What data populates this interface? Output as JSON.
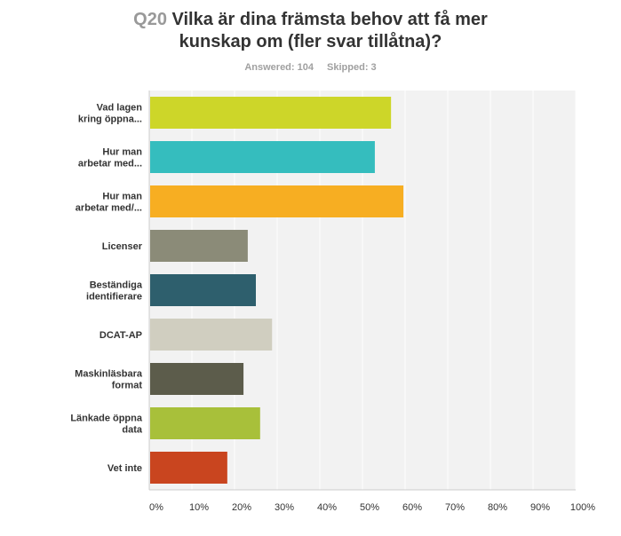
{
  "question": {
    "number": "Q20",
    "title_line1": "Vilka är dina främsta behov att få mer",
    "title_line2": "kunskap om (fler svar tillåtna)?"
  },
  "stats": {
    "answered": "Answered: 104",
    "skipped": "Skipped: 3"
  },
  "chart_data": {
    "type": "bar",
    "orientation": "horizontal",
    "categories": [
      [
        "Vad lagen",
        "kring öppna..."
      ],
      [
        "Hur man",
        "arbetar med..."
      ],
      [
        "Hur man",
        "arbetar med/..."
      ],
      [
        "Licenser"
      ],
      [
        "Beständiga",
        "identifierare"
      ],
      [
        "DCAT-AP"
      ],
      [
        "Maskinläsbara",
        "format"
      ],
      [
        "Länkade öppna",
        "data"
      ],
      [
        "Vet inte"
      ]
    ],
    "values": [
      56.7,
      52.9,
      59.6,
      23.1,
      25.0,
      28.8,
      22.1,
      26.0,
      18.3
    ],
    "colors": [
      "#cdd629",
      "#35bdbe",
      "#f7ae22",
      "#8b8b78",
      "#2e5f6d",
      "#d0cec0",
      "#5c5c4b",
      "#a8c03a",
      "#c9451f"
    ],
    "xlim": [
      0,
      100
    ],
    "ticks": [
      "0%",
      "10%",
      "20%",
      "30%",
      "40%",
      "50%",
      "60%",
      "70%",
      "80%",
      "90%",
      "100%"
    ],
    "grid": true
  }
}
